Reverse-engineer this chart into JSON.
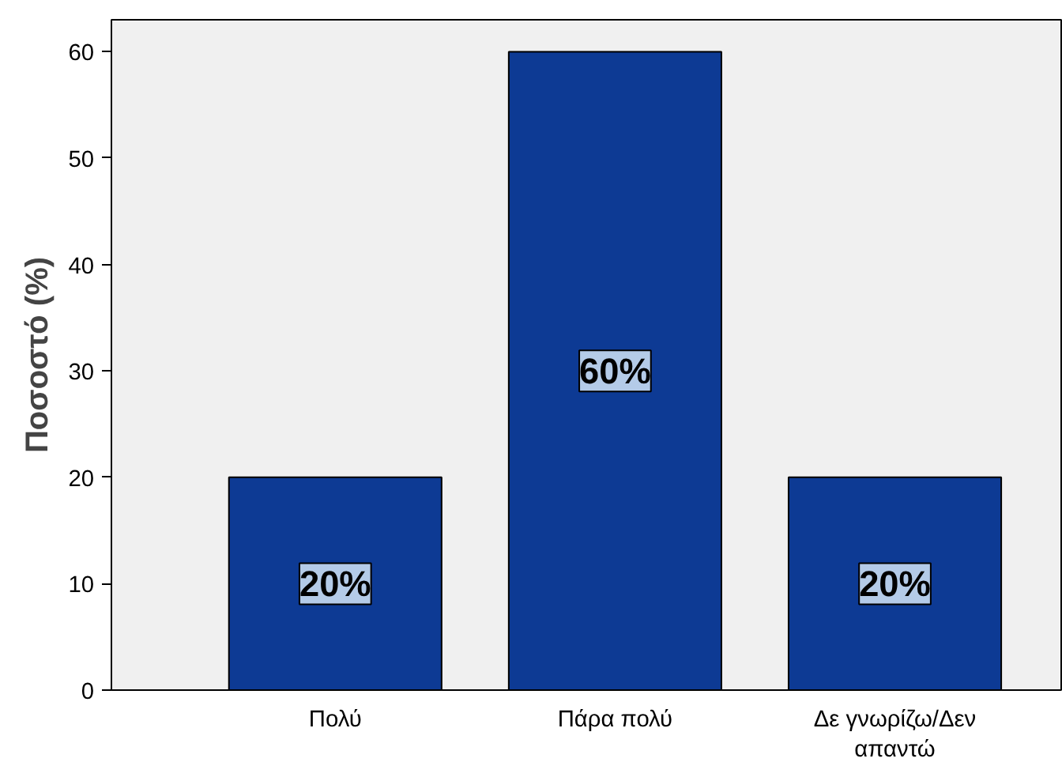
{
  "chart_data": {
    "type": "bar",
    "ylabel": "Ποσοστό (%)",
    "categories": [
      "Πολύ",
      "Πάρα πολύ",
      "Δε γνωρίζω/Δεν απαντώ"
    ],
    "values": [
      20,
      60,
      20
    ],
    "color": "#0d3a94",
    "value_labels": [
      "20%",
      "60%",
      "20%"
    ],
    "ylim": [
      0,
      63
    ],
    "yticks": [
      0,
      10,
      20,
      30,
      40,
      50,
      60
    ],
    "grid": false
  }
}
